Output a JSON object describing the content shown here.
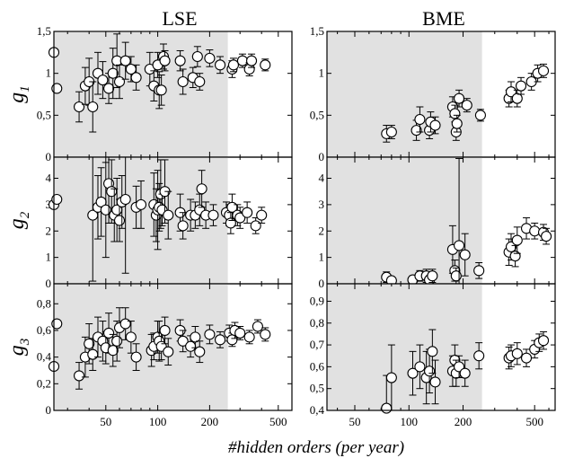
{
  "chart_data": {
    "type": "scatter",
    "xlabel": "#hidden orders (per year)",
    "xscale": "log",
    "x_ticks": [
      50,
      100,
      200,
      500
    ],
    "columns": [
      {
        "title": "LSE",
        "xlim": [
          25,
          600
        ],
        "shaded_x": [
          25,
          255
        ]
      },
      {
        "title": "BME",
        "xlim": [
          35,
          650
        ],
        "shaded_x": [
          35,
          255
        ]
      }
    ],
    "rows": [
      {
        "ylabel": "g",
        "ylabel_sub": "1",
        "yticks_left": [
          "0",
          "0,5",
          "1",
          "1,5"
        ],
        "yticks_right": [
          "0",
          "0,5",
          "1",
          "1,5"
        ],
        "ylim_left": [
          0,
          1.5
        ],
        "ylim_right": [
          0,
          1.5
        ],
        "points_left": [
          [
            25,
            1.25,
            0
          ],
          [
            26,
            0.82,
            0
          ],
          [
            35,
            0.6,
            0.18
          ],
          [
            38,
            0.85,
            0.22
          ],
          [
            40,
            0.9,
            0.28
          ],
          [
            42,
            0.6,
            0.3
          ],
          [
            45,
            1.0,
            0.25
          ],
          [
            48,
            0.92,
            0.22
          ],
          [
            52,
            0.82,
            0.18
          ],
          [
            55,
            1.0,
            0.3
          ],
          [
            58,
            1.15,
            0.32
          ],
          [
            60,
            0.9,
            0.2
          ],
          [
            65,
            1.15,
            0.22
          ],
          [
            70,
            1.05,
            0.15
          ],
          [
            75,
            0.95,
            0.15
          ],
          [
            90,
            1.05,
            0.2
          ],
          [
            95,
            0.85,
            0.18
          ],
          [
            100,
            1.1,
            0.15
          ],
          [
            102,
            0.8,
            0.22
          ],
          [
            105,
            0.8,
            0.18
          ],
          [
            108,
            1.2,
            0.15
          ],
          [
            110,
            1.15,
            0.12
          ],
          [
            135,
            1.15,
            0.12
          ],
          [
            140,
            0.9,
            0.15
          ],
          [
            160,
            0.95,
            0.12
          ],
          [
            170,
            1.2,
            0.12
          ],
          [
            175,
            0.9,
            0.1
          ],
          [
            200,
            1.18,
            0.1
          ],
          [
            230,
            1.1,
            0.1
          ],
          [
            270,
            1.05,
            0.1
          ],
          [
            275,
            1.1,
            0.08
          ],
          [
            310,
            1.15,
            0.08
          ],
          [
            340,
            1.05,
            0.08
          ],
          [
            350,
            1.15,
            0.08
          ],
          [
            420,
            1.1,
            0.07
          ]
        ],
        "points_right": [
          [
            75,
            0.28,
            0.1
          ],
          [
            80,
            0.3,
            0.08
          ],
          [
            110,
            0.32,
            0.12
          ],
          [
            115,
            0.45,
            0.15
          ],
          [
            130,
            0.32,
            0.1
          ],
          [
            132,
            0.42,
            0.12
          ],
          [
            140,
            0.38,
            0.1
          ],
          [
            175,
            0.6,
            0.12
          ],
          [
            180,
            0.52,
            0.1
          ],
          [
            183,
            0.3,
            0.1
          ],
          [
            185,
            0.4,
            0.1
          ],
          [
            190,
            0.7,
            0.1
          ],
          [
            210,
            0.62,
            0.08
          ],
          [
            250,
            0.5,
            0.07
          ],
          [
            360,
            0.7,
            0.1
          ],
          [
            370,
            0.78,
            0.12
          ],
          [
            400,
            0.7,
            0.1
          ],
          [
            420,
            0.85,
            0.1
          ],
          [
            480,
            0.9,
            0.1
          ],
          [
            520,
            1.0,
            0.1
          ],
          [
            560,
            1.03,
            0.08
          ]
        ]
      },
      {
        "ylabel": "g",
        "ylabel_sub": "2",
        "yticks_left": [
          "0",
          "1",
          "2",
          "3",
          "4"
        ],
        "yticks_right": [
          "0",
          "1",
          "2",
          "3",
          "4"
        ],
        "ylim_left": [
          0,
          4.8
        ],
        "ylim_right": [
          0,
          4.8
        ],
        "points_left": [
          [
            25,
            3.0,
            0
          ],
          [
            26,
            3.2,
            0
          ],
          [
            42,
            2.6,
            2.5
          ],
          [
            45,
            2.9,
            1.2
          ],
          [
            47,
            3.1,
            1.3
          ],
          [
            50,
            2.8,
            1.8
          ],
          [
            52,
            3.8,
            1.5
          ],
          [
            54,
            3.5,
            1.2
          ],
          [
            56,
            2.6,
            1.0
          ],
          [
            58,
            2.8,
            1.2
          ],
          [
            60,
            2.4,
            0.8
          ],
          [
            62,
            3.1,
            1.0
          ],
          [
            65,
            3.2,
            2.8
          ],
          [
            75,
            2.9,
            0.8
          ],
          [
            80,
            3.0,
            0.9
          ],
          [
            95,
            3.0,
            1.2
          ],
          [
            98,
            2.6,
            1.0
          ],
          [
            100,
            2.8,
            1.5
          ],
          [
            102,
            2.9,
            0.9
          ],
          [
            104,
            3.4,
            1.3
          ],
          [
            106,
            2.8,
            0.6
          ],
          [
            110,
            3.5,
            1.2
          ],
          [
            115,
            2.6,
            0.9
          ],
          [
            135,
            2.7,
            0.7
          ],
          [
            140,
            2.2,
            0.5
          ],
          [
            155,
            2.6,
            0.6
          ],
          [
            165,
            2.6,
            0.5
          ],
          [
            175,
            2.8,
            0.6
          ],
          [
            180,
            3.6,
            0.7
          ],
          [
            190,
            2.6,
            0.5
          ],
          [
            210,
            2.6,
            0.4
          ],
          [
            250,
            2.7,
            0.4
          ],
          [
            260,
            2.6,
            0.4
          ],
          [
            265,
            2.3,
            0.4
          ],
          [
            270,
            2.9,
            0.5
          ],
          [
            290,
            2.6,
            0.4
          ],
          [
            300,
            2.5,
            0.4
          ],
          [
            330,
            2.7,
            0.4
          ],
          [
            370,
            2.2,
            0.3
          ],
          [
            400,
            2.6,
            0.3
          ]
        ],
        "points_right": [
          [
            75,
            0.25,
            0.2
          ],
          [
            80,
            0.12,
            0.1
          ],
          [
            105,
            0.15,
            0.15
          ],
          [
            115,
            0.3,
            0.2
          ],
          [
            125,
            0.3,
            0.25
          ],
          [
            130,
            0.15,
            0.15
          ],
          [
            135,
            0.3,
            0.25
          ],
          [
            175,
            1.3,
            0.9
          ],
          [
            180,
            0.5,
            0.4
          ],
          [
            183,
            0.3,
            0.3
          ],
          [
            190,
            1.45,
            3.3
          ],
          [
            205,
            1.1,
            0.8
          ],
          [
            245,
            0.5,
            0.3
          ],
          [
            360,
            1.2,
            0.5
          ],
          [
            370,
            1.4,
            0.5
          ],
          [
            390,
            1.05,
            0.4
          ],
          [
            400,
            1.65,
            0.5
          ],
          [
            450,
            2.1,
            0.4
          ],
          [
            500,
            2.0,
            0.3
          ],
          [
            560,
            1.95,
            0.3
          ],
          [
            580,
            1.8,
            0.3
          ]
        ]
      },
      {
        "ylabel": "g",
        "ylabel_sub": "3",
        "yticks_left": [
          "0",
          "0,2",
          "0,4",
          "0,6",
          "0,8"
        ],
        "yticks_right": [
          "0,4",
          "0,5",
          "0,6",
          "0,7",
          "0,8",
          "0,9"
        ],
        "ylim_left": [
          0,
          0.95
        ],
        "ylim_right": [
          0.4,
          0.98
        ],
        "points_left": [
          [
            25,
            0.33,
            0
          ],
          [
            26,
            0.65,
            0
          ],
          [
            35,
            0.26,
            0.1
          ],
          [
            38,
            0.4,
            0.15
          ],
          [
            40,
            0.5,
            0.15
          ],
          [
            42,
            0.42,
            0.12
          ],
          [
            45,
            0.55,
            0.15
          ],
          [
            48,
            0.52,
            0.15
          ],
          [
            50,
            0.47,
            0.12
          ],
          [
            52,
            0.58,
            0.15
          ],
          [
            55,
            0.45,
            0.12
          ],
          [
            58,
            0.52,
            0.15
          ],
          [
            60,
            0.62,
            0.15
          ],
          [
            65,
            0.65,
            0.12
          ],
          [
            70,
            0.55,
            0.12
          ],
          [
            75,
            0.4,
            0.1
          ],
          [
            92,
            0.45,
            0.12
          ],
          [
            95,
            0.48,
            0.1
          ],
          [
            100,
            0.55,
            0.12
          ],
          [
            102,
            0.52,
            0.15
          ],
          [
            105,
            0.48,
            0.1
          ],
          [
            110,
            0.6,
            0.1
          ],
          [
            115,
            0.44,
            0.1
          ],
          [
            135,
            0.6,
            0.08
          ],
          [
            140,
            0.52,
            0.08
          ],
          [
            155,
            0.48,
            0.08
          ],
          [
            165,
            0.55,
            0.08
          ],
          [
            175,
            0.44,
            0.08
          ],
          [
            200,
            0.57,
            0.07
          ],
          [
            230,
            0.53,
            0.06
          ],
          [
            260,
            0.58,
            0.06
          ],
          [
            270,
            0.53,
            0.05
          ],
          [
            280,
            0.6,
            0.06
          ],
          [
            300,
            0.58,
            0.05
          ],
          [
            340,
            0.55,
            0.05
          ],
          [
            380,
            0.63,
            0.05
          ],
          [
            420,
            0.57,
            0.05
          ]
        ],
        "points_right": [
          [
            75,
            0.41,
            0.15
          ],
          [
            80,
            0.55,
            0.15
          ],
          [
            105,
            0.57,
            0.1
          ],
          [
            115,
            0.6,
            0.1
          ],
          [
            125,
            0.55,
            0.12
          ],
          [
            130,
            0.58,
            0.1
          ],
          [
            135,
            0.67,
            0.1
          ],
          [
            140,
            0.53,
            0.1
          ],
          [
            175,
            0.58,
            0.07
          ],
          [
            180,
            0.63,
            0.07
          ],
          [
            183,
            0.57,
            0.06
          ],
          [
            190,
            0.6,
            0.05
          ],
          [
            205,
            0.57,
            0.06
          ],
          [
            245,
            0.65,
            0.06
          ],
          [
            360,
            0.64,
            0.05
          ],
          [
            370,
            0.65,
            0.05
          ],
          [
            400,
            0.66,
            0.05
          ],
          [
            450,
            0.64,
            0.04
          ],
          [
            500,
            0.68,
            0.04
          ],
          [
            530,
            0.71,
            0.04
          ],
          [
            560,
            0.72,
            0.04
          ]
        ]
      }
    ]
  }
}
